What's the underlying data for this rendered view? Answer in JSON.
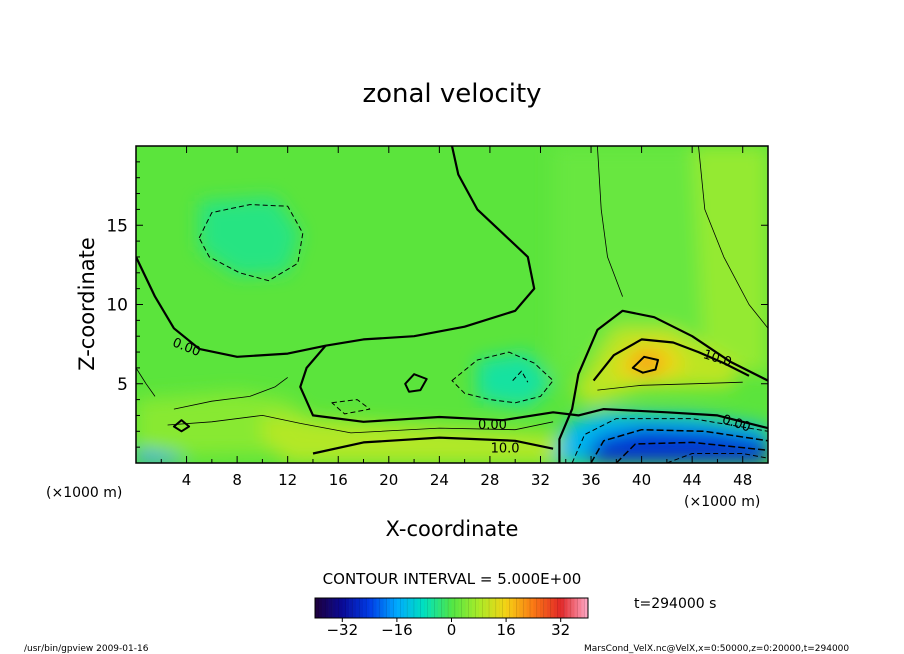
{
  "chart_data": {
    "type": "heatmap",
    "title": "zonal velocity",
    "xlabel": "X-coordinate",
    "ylabel": "Z-coordinate",
    "x_unit": "(×1000 m)",
    "y_unit": "(×1000 m)",
    "xlim": [
      0,
      50
    ],
    "ylim": [
      0,
      20
    ],
    "x_ticks": [
      4,
      8,
      12,
      16,
      20,
      24,
      28,
      32,
      36,
      40,
      44,
      48
    ],
    "y_ticks": [
      5,
      10,
      15
    ],
    "contour_interval_text": "CONTOUR INTERVAL = 5.000E+00",
    "contour_labels": [
      {
        "text": "0.00",
        "x": 4.0,
        "z": 7.3
      },
      {
        "text": "0.00",
        "x": 28.2,
        "z": 2.4
      },
      {
        "text": "10.0",
        "x": 29.2,
        "z": 0.9
      },
      {
        "text": "10.0",
        "x": 46.0,
        "z": 6.6
      },
      {
        "text": "0.00",
        "x": 47.5,
        "z": 2.5
      }
    ],
    "colorbar": {
      "min": -40,
      "max": 40,
      "ticks": [
        -32,
        -16,
        0,
        16,
        32
      ]
    },
    "time_label": "t=294000 s",
    "features": [
      {
        "kind": "jet",
        "x": 40,
        "z": 6.2,
        "value": 16
      },
      {
        "kind": "jet",
        "x": 40,
        "z": 0.4,
        "value": -28
      }
    ]
  },
  "footer": {
    "left": "/usr/bin/gpview  2009-01-16",
    "right": "MarsCond_VelX.nc@VelX,x=0:50000,z=0:20000,t=294000"
  }
}
